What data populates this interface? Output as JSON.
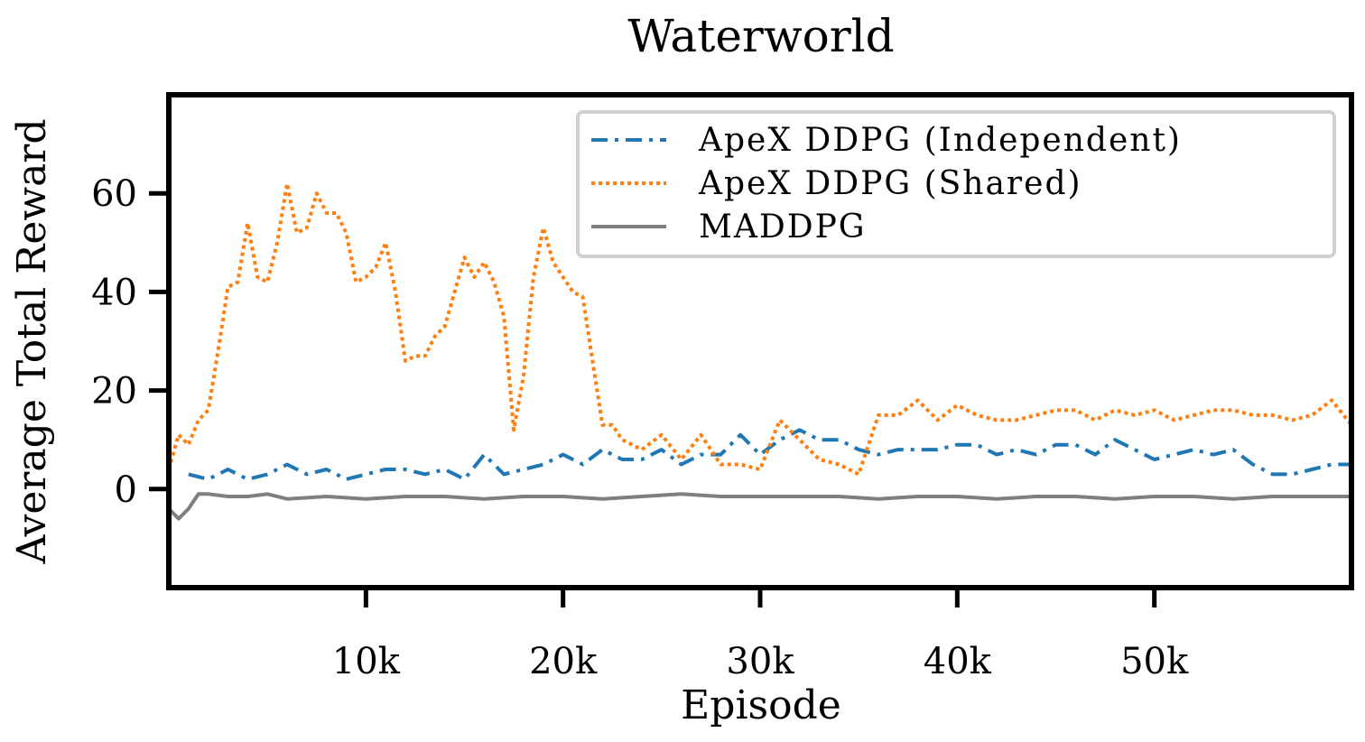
{
  "chart_data": {
    "type": "line",
    "title": "Waterworld",
    "xlabel": "Episode",
    "ylabel": "Average Total Reward",
    "xlim": [
      0,
      60000
    ],
    "ylim": [
      -20,
      80
    ],
    "x_ticks": [
      10000,
      20000,
      30000,
      40000,
      50000
    ],
    "x_tick_labels": [
      "10k",
      "20k",
      "30k",
      "40k",
      "50k"
    ],
    "y_ticks": [
      0,
      20,
      40,
      60
    ],
    "y_tick_labels": [
      "0",
      "20",
      "40",
      "60"
    ],
    "grid": false,
    "legend_position": "top-right",
    "series": [
      {
        "name": "ApeX DDPG (Independent)",
        "color": "#1f77b4",
        "style": "dashdot",
        "x": [
          1000,
          2000,
          3000,
          4000,
          5000,
          6000,
          7000,
          8000,
          9000,
          10000,
          11000,
          12000,
          13000,
          14000,
          15000,
          16000,
          17000,
          18000,
          19000,
          20000,
          21000,
          22000,
          23000,
          24000,
          25000,
          26000,
          27000,
          28000,
          29000,
          30000,
          31000,
          32000,
          33000,
          34000,
          35000,
          36000,
          37000,
          38000,
          39000,
          40000,
          41000,
          42000,
          43000,
          44000,
          45000,
          46000,
          47000,
          48000,
          49000,
          50000,
          51000,
          52000,
          53000,
          54000,
          55000,
          56000,
          57000,
          58000,
          59000,
          60000
        ],
        "y": [
          3,
          2,
          4,
          2,
          3,
          5,
          3,
          4,
          2,
          3,
          4,
          4,
          3,
          4,
          2,
          7,
          3,
          4,
          5,
          7,
          5,
          8,
          6,
          6,
          8,
          5,
          7,
          7,
          11,
          7,
          10,
          12,
          10,
          10,
          8,
          7,
          8,
          8,
          8,
          9,
          9,
          7,
          8,
          7,
          9,
          9,
          7,
          10,
          8,
          6,
          7,
          8,
          7,
          8,
          5,
          3,
          3,
          4,
          5,
          5
        ]
      },
      {
        "name": "ApeX DDPG (Shared)",
        "color": "#ff7f0e",
        "style": "dotted",
        "x": [
          0,
          500,
          1000,
          1500,
          2000,
          2500,
          3000,
          3500,
          4000,
          4500,
          5000,
          5500,
          6000,
          6500,
          7000,
          7500,
          8000,
          8500,
          9000,
          9500,
          10000,
          10500,
          11000,
          11500,
          12000,
          12500,
          13000,
          13500,
          14000,
          14500,
          15000,
          15500,
          16000,
          16500,
          17000,
          17500,
          18000,
          18500,
          19000,
          19500,
          20000,
          20500,
          21000,
          21500,
          22000,
          22500,
          23000,
          24000,
          25000,
          26000,
          27000,
          28000,
          29000,
          30000,
          31000,
          32000,
          33000,
          34000,
          35000,
          36000,
          37000,
          38000,
          39000,
          40000,
          41000,
          42000,
          43000,
          44000,
          45000,
          46000,
          47000,
          48000,
          49000,
          50000,
          51000,
          52000,
          53000,
          54000,
          55000,
          56000,
          57000,
          58000,
          59000,
          60000
        ],
        "y": [
          4,
          11,
          9,
          14,
          16,
          28,
          41,
          42,
          54,
          43,
          42,
          50,
          62,
          52,
          53,
          60,
          56,
          56,
          52,
          42,
          43,
          45,
          50,
          40,
          26,
          27,
          27,
          31,
          33,
          40,
          47,
          43,
          46,
          42,
          35,
          12,
          23,
          43,
          53,
          46,
          43,
          40,
          39,
          26,
          13,
          13,
          10,
          8,
          11,
          6,
          11,
          5,
          5,
          4,
          14,
          10,
          6,
          5,
          3,
          15,
          15,
          18,
          14,
          17,
          15,
          14,
          14,
          15,
          16,
          16,
          14,
          16,
          15,
          16,
          14,
          15,
          16,
          16,
          15,
          15,
          14,
          15,
          18,
          13
        ]
      },
      {
        "name": "MADDPG",
        "color": "#7f7f7f",
        "style": "solid",
        "x": [
          0,
          500,
          1000,
          1500,
          2000,
          3000,
          4000,
          5000,
          6000,
          8000,
          10000,
          12000,
          14000,
          16000,
          18000,
          20000,
          22000,
          24000,
          26000,
          28000,
          30000,
          32000,
          34000,
          36000,
          38000,
          40000,
          42000,
          44000,
          46000,
          48000,
          50000,
          52000,
          54000,
          56000,
          58000,
          60000
        ],
        "y": [
          -4,
          -6,
          -4,
          -1,
          -1,
          -1.5,
          -1.5,
          -1,
          -2,
          -1.5,
          -2,
          -1.5,
          -1.5,
          -2,
          -1.5,
          -1.5,
          -2,
          -1.5,
          -1,
          -1.5,
          -1.5,
          -1.5,
          -1.5,
          -2,
          -1.5,
          -1.5,
          -2,
          -1.5,
          -1.5,
          -2,
          -1.5,
          -1.5,
          -2,
          -1.5,
          -1.5,
          -1.5
        ]
      }
    ]
  }
}
